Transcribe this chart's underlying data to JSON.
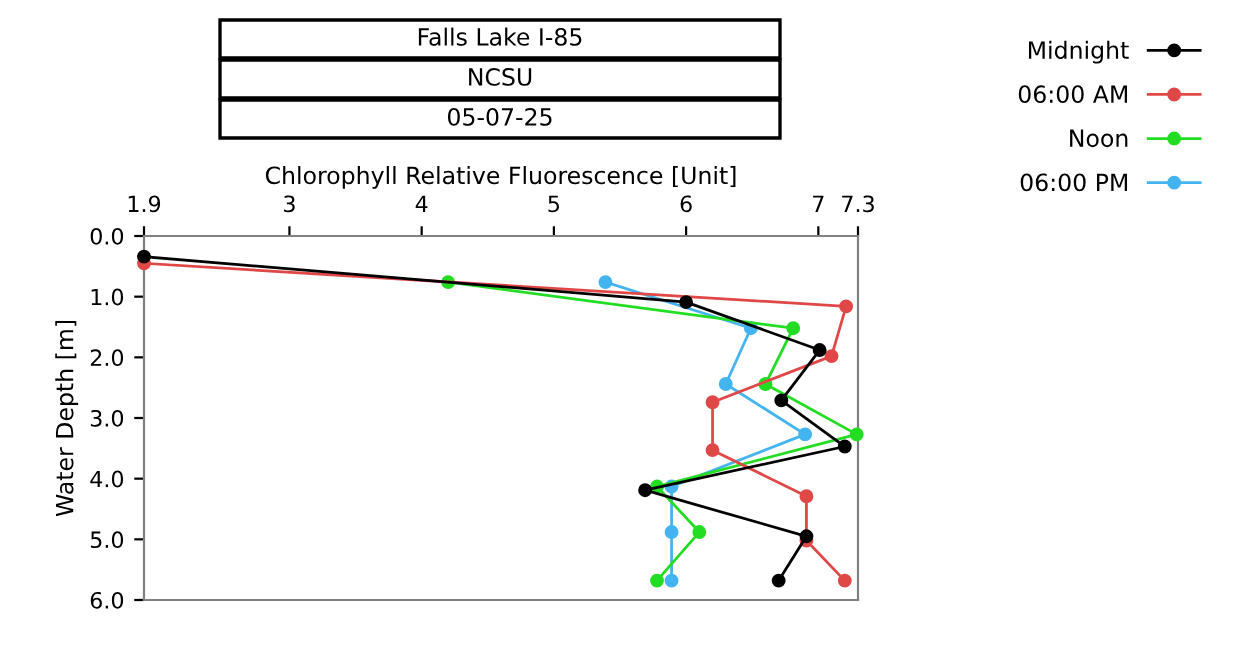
{
  "chart_data": {
    "type": "line",
    "title": "Falls Lake I-85",
    "subtitle": "NCSU",
    "annotations": [
      "05-07-25"
    ],
    "xlabel": "Chlorophyll Relative Fluorescence [Unit]",
    "ylabel": "Water Depth [m]",
    "xlim": [
      1.9,
      7.3
    ],
    "xticks": [
      1.9,
      3,
      4,
      5,
      6,
      7,
      7.3
    ],
    "ylim": [
      6.0,
      0.0
    ],
    "yticks": [
      {
        "value": 0,
        "label": "0.0"
      },
      {
        "value": 1,
        "label": "1.0"
      },
      {
        "value": 2,
        "label": "2.0"
      },
      {
        "value": 3,
        "label": "3.0"
      },
      {
        "value": 4,
        "label": "4.0"
      },
      {
        "value": 5,
        "label": "5.0"
      },
      {
        "value": 6,
        "label": "6.0"
      }
    ],
    "marker": "circle",
    "line_style": "solid",
    "grid": false,
    "legend": "top right",
    "series": [
      {
        "name": "Midnight",
        "color": "#000000",
        "x": [
          1.9,
          6.0,
          7.01,
          6.72,
          7.2,
          5.69,
          6.91,
          6.7
        ],
        "values": [
          0.34,
          1.09,
          1.88,
          2.71,
          3.47,
          4.19,
          4.95,
          5.68
        ]
      },
      {
        "name": "06:00 AM",
        "color": "#e04848",
        "x": [
          1.9,
          7.21,
          7.1,
          6.2,
          6.2,
          6.91,
          6.91,
          7.2
        ],
        "values": [
          0.45,
          1.16,
          1.98,
          2.74,
          3.53,
          4.29,
          5.02,
          5.68
        ]
      },
      {
        "name": "Noon",
        "color": "#22dd22",
        "x": [
          4.2,
          6.81,
          6.6,
          7.29,
          5.78,
          6.1,
          5.78
        ],
        "values": [
          0.76,
          1.52,
          2.44,
          3.27,
          4.13,
          4.88,
          5.68
        ]
      },
      {
        "name": "06:00 PM",
        "color": "#44b4f0",
        "x": [
          5.39,
          6.49,
          6.3,
          6.9,
          5.89,
          5.89,
          5.89
        ],
        "values": [
          0.76,
          1.52,
          2.44,
          3.27,
          4.13,
          4.88,
          5.68
        ]
      }
    ]
  }
}
